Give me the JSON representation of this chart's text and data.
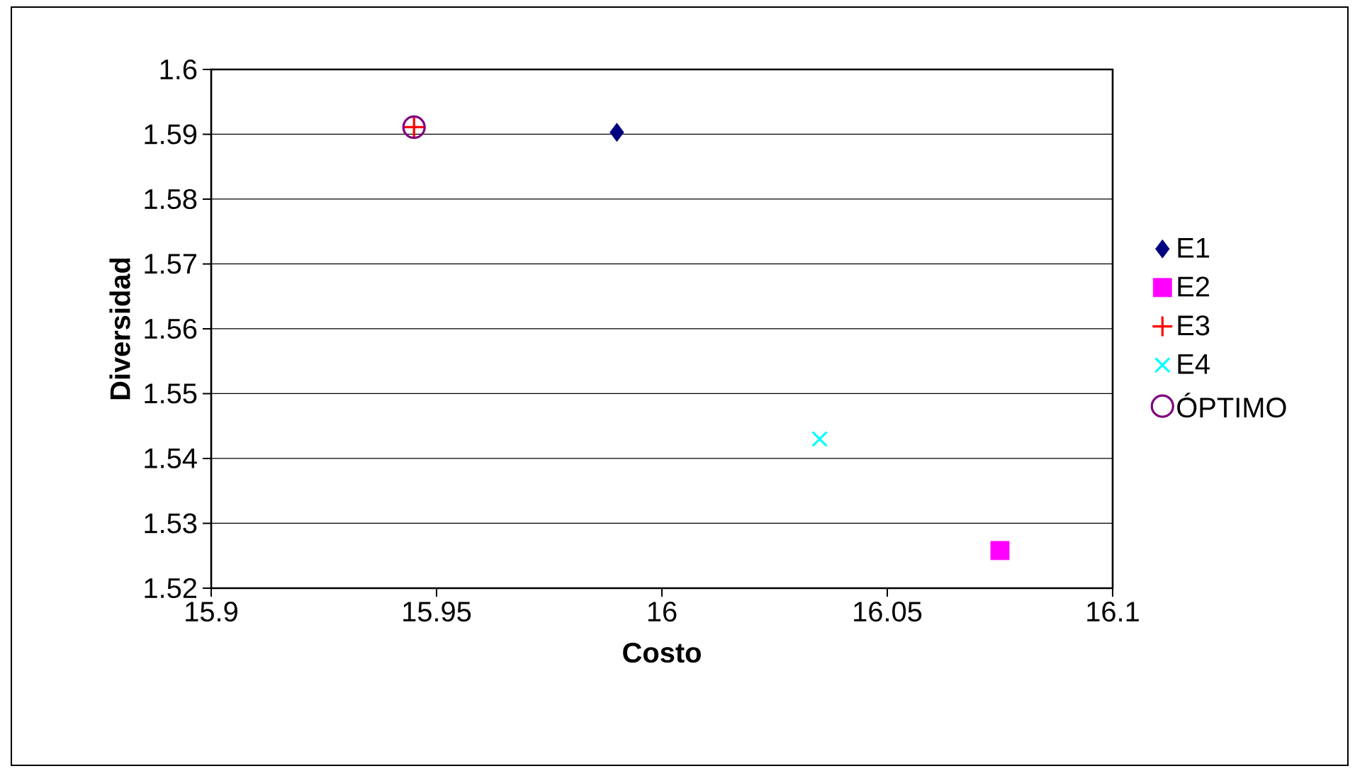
{
  "chart_data": {
    "type": "scatter",
    "xlabel": "Costo",
    "ylabel": "Diversidad",
    "xlim": [
      15.9,
      16.1
    ],
    "xticks": [
      15.9,
      15.95,
      16,
      16.05,
      16.1
    ],
    "ylim": [
      1.52,
      1.6
    ],
    "yticks": [
      1.52,
      1.53,
      1.54,
      1.55,
      1.56,
      1.57,
      1.58,
      1.59,
      1.6
    ],
    "grid": "y",
    "legend": "right",
    "series": [
      {
        "name": "E1",
        "color": "#000080",
        "marker": "diamond",
        "x": [
          15.99
        ],
        "values": [
          1.5903
        ]
      },
      {
        "name": "E2",
        "color": "#ff00ff",
        "marker": "square",
        "x": [
          16.075
        ],
        "values": [
          1.5258
        ]
      },
      {
        "name": "E3",
        "color": "#ff0000",
        "marker": "cross",
        "x": [
          15.945
        ],
        "values": [
          1.5911
        ]
      },
      {
        "name": "E4",
        "color": "#00ffff",
        "marker": "x",
        "x": [
          16.035
        ],
        "values": [
          1.543
        ]
      },
      {
        "name": "ÓPTIMO",
        "color": "#800080",
        "marker": "circle",
        "x": [
          15.945
        ],
        "values": [
          1.5911
        ]
      }
    ]
  }
}
